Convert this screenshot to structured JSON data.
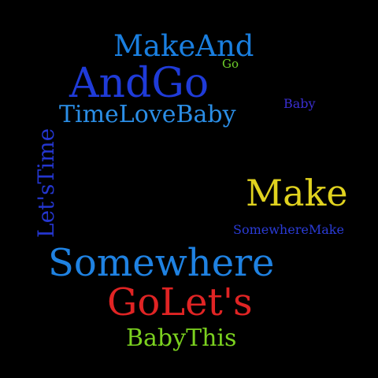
{
  "word_cloud": {
    "background_color": "#000000",
    "words": {
      "make_and": {
        "text": "MakeAnd",
        "color": "#1a7fe0"
      },
      "go_small": {
        "text": "Go",
        "color": "#6fd12a"
      },
      "and_go": {
        "text": "AndGo",
        "color": "#1f3bd8"
      },
      "baby_small": {
        "text": "Baby",
        "color": "#3a2ed0"
      },
      "time_love_baby": {
        "text": "TimeLoveBaby",
        "color": "#2b8ee6"
      },
      "lets_time": {
        "text": "Let'sTime",
        "color": "#2436cf",
        "orientation": "vertical"
      },
      "make": {
        "text": "Make",
        "color": "#e0d21f"
      },
      "somewhere_make": {
        "text": "SomewhereMake",
        "color": "#2a3bd6"
      },
      "somewhere": {
        "text": "Somewhere",
        "color": "#1f82e2"
      },
      "go_lets": {
        "text": "GoLet's",
        "color": "#e02424"
      },
      "baby_this": {
        "text": "BabyThis",
        "color": "#7bd11f"
      }
    }
  }
}
